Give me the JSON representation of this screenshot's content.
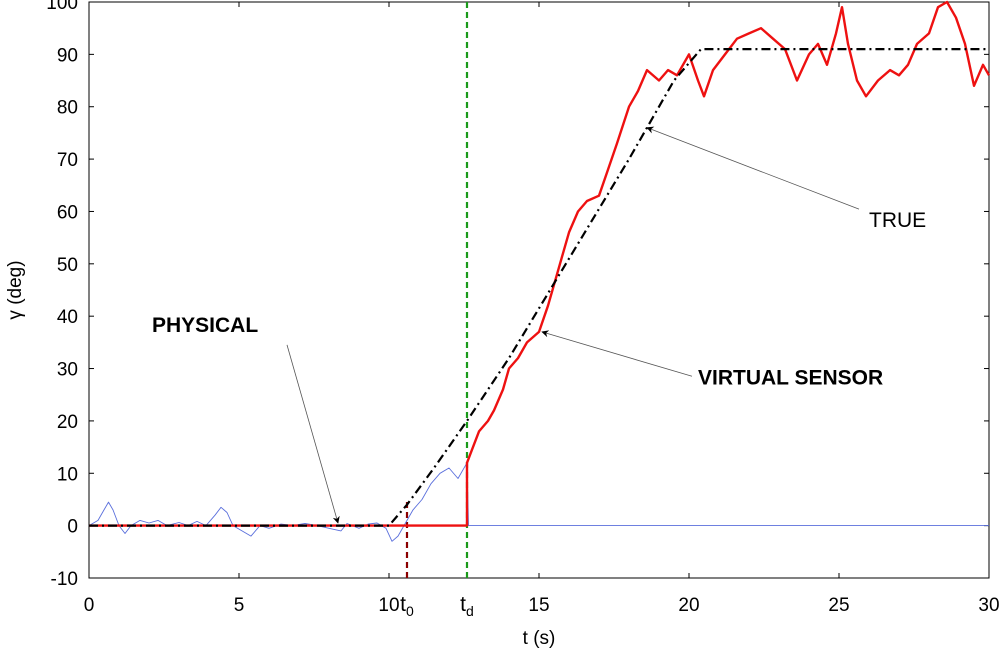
{
  "chart_data": {
    "type": "line",
    "xlabel": "t (s)",
    "ylabel": "γ (deg)",
    "xlim": [
      0,
      30
    ],
    "ylim": [
      -10,
      100
    ],
    "x_ticks": [
      0,
      5,
      10,
      15,
      20,
      25,
      30
    ],
    "y_ticks": [
      -10,
      0,
      10,
      20,
      30,
      40,
      50,
      60,
      70,
      80,
      90,
      100
    ],
    "grid": false,
    "vertical_markers": [
      {
        "x": 10.6,
        "label_base": "t",
        "label_sub": "0",
        "color": "#8b0000",
        "style": "dashed",
        "y_top": 5
      },
      {
        "x": 12.6,
        "label_base": "t",
        "label_sub": "d",
        "color": "#1a9a1a",
        "style": "dashed",
        "y_top": 100
      }
    ],
    "series": [
      {
        "name": "TRUE",
        "color": "#000000",
        "style": "dashdot",
        "points": [
          [
            0,
            0
          ],
          [
            10,
            0
          ],
          [
            10.6,
            4
          ],
          [
            11.5,
            11
          ],
          [
            12.6,
            20
          ],
          [
            14,
            32
          ],
          [
            16,
            51
          ],
          [
            18,
            70
          ],
          [
            19.5,
            85
          ],
          [
            20.4,
            91
          ],
          [
            30,
            91
          ]
        ]
      },
      {
        "name": "PHYSICAL",
        "color": "#5a6fdc",
        "style": "thin",
        "points": [
          [
            0,
            0
          ],
          [
            0.3,
            1
          ],
          [
            0.5,
            3
          ],
          [
            0.65,
            4.5
          ],
          [
            0.8,
            3
          ],
          [
            1,
            0
          ],
          [
            1.2,
            -1.5
          ],
          [
            1.4,
            0
          ],
          [
            1.7,
            1
          ],
          [
            2,
            0.5
          ],
          [
            2.3,
            1
          ],
          [
            2.6,
            0
          ],
          [
            3,
            0.6
          ],
          [
            3.3,
            0
          ],
          [
            3.6,
            0.8
          ],
          [
            3.9,
            0
          ],
          [
            4.2,
            2
          ],
          [
            4.4,
            3.5
          ],
          [
            4.6,
            2.5
          ],
          [
            4.8,
            0
          ],
          [
            5.1,
            -1
          ],
          [
            5.4,
            -2
          ],
          [
            5.7,
            0
          ],
          [
            6,
            -0.5
          ],
          [
            6.4,
            0.3
          ],
          [
            6.8,
            0
          ],
          [
            7.2,
            0.4
          ],
          [
            7.6,
            0
          ],
          [
            8,
            -0.5
          ],
          [
            8.4,
            -1
          ],
          [
            8.6,
            0.4
          ],
          [
            9,
            -0.5
          ],
          [
            9.3,
            0.3
          ],
          [
            9.6,
            0.5
          ],
          [
            9.9,
            -0.5
          ],
          [
            10.1,
            -3
          ],
          [
            10.3,
            -2
          ],
          [
            10.5,
            0
          ],
          [
            10.8,
            3
          ],
          [
            11.1,
            5
          ],
          [
            11.4,
            8
          ],
          [
            11.7,
            10
          ],
          [
            12,
            11
          ],
          [
            12.3,
            9
          ],
          [
            12.6,
            12
          ],
          [
            12.65,
            0
          ],
          [
            13.5,
            0
          ],
          [
            15,
            0
          ],
          [
            17,
            0
          ],
          [
            19,
            0
          ],
          [
            21,
            0
          ],
          [
            23,
            0
          ],
          [
            25,
            0
          ],
          [
            27,
            0
          ],
          [
            30,
            0
          ]
        ]
      },
      {
        "name": "VIRTUAL SENSOR",
        "color": "#ee1111",
        "style": "thick",
        "points": [
          [
            0,
            0
          ],
          [
            12.6,
            0
          ],
          [
            12.6,
            12
          ],
          [
            12.8,
            15
          ],
          [
            13,
            18
          ],
          [
            13.3,
            20
          ],
          [
            13.5,
            22
          ],
          [
            13.8,
            26
          ],
          [
            14,
            30
          ],
          [
            14.3,
            32
          ],
          [
            14.6,
            35
          ],
          [
            15,
            37
          ],
          [
            15.3,
            42
          ],
          [
            15.6,
            48
          ],
          [
            15.8,
            52
          ],
          [
            16,
            56
          ],
          [
            16.3,
            60
          ],
          [
            16.6,
            62
          ],
          [
            17,
            63
          ],
          [
            17.3,
            68
          ],
          [
            17.6,
            73
          ],
          [
            18,
            80
          ],
          [
            18.3,
            83
          ],
          [
            18.6,
            87
          ],
          [
            19,
            85
          ],
          [
            19.3,
            87
          ],
          [
            19.6,
            86
          ],
          [
            20,
            90
          ],
          [
            20.3,
            85
          ],
          [
            20.5,
            82
          ],
          [
            20.8,
            87
          ],
          [
            21.2,
            90
          ],
          [
            21.6,
            93
          ],
          [
            22,
            94
          ],
          [
            22.4,
            95
          ],
          [
            22.8,
            93
          ],
          [
            23.2,
            91
          ],
          [
            23.6,
            85
          ],
          [
            24,
            90
          ],
          [
            24.3,
            92
          ],
          [
            24.6,
            88
          ],
          [
            24.9,
            94
          ],
          [
            25.1,
            99
          ],
          [
            25.3,
            92
          ],
          [
            25.6,
            85
          ],
          [
            25.9,
            82
          ],
          [
            26.3,
            85
          ],
          [
            26.7,
            87
          ],
          [
            27,
            86
          ],
          [
            27.3,
            88
          ],
          [
            27.6,
            92
          ],
          [
            28,
            94
          ],
          [
            28.3,
            99
          ],
          [
            28.6,
            100
          ],
          [
            28.9,
            97
          ],
          [
            29.2,
            92
          ],
          [
            29.5,
            84
          ],
          [
            29.8,
            88
          ],
          [
            30,
            86
          ]
        ]
      }
    ],
    "annotations": [
      {
        "text": "TRUE",
        "bold": false,
        "label_x": 26,
        "label_y": 57,
        "arrow_to": [
          18.6,
          76
        ]
      },
      {
        "text": "VIRTUAL SENSOR",
        "bold": true,
        "label_x": 20.3,
        "label_y": 27,
        "arrow_to": [
          15.1,
          37
        ]
      },
      {
        "text": "PHYSICAL",
        "bold": true,
        "label_x": 2.1,
        "label_y": 37,
        "arrow_to": [
          8.3,
          0.5
        ]
      }
    ]
  }
}
